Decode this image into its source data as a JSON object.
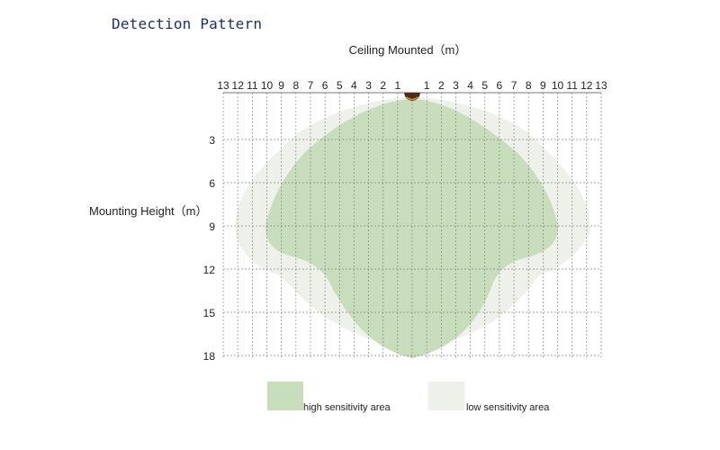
{
  "title": "Detection Pattern",
  "top_axis": {
    "label": "Ceiling Mounted（m）",
    "left_ticks": [
      "13",
      "12",
      "11",
      "10",
      "9",
      "8",
      "7",
      "6",
      "5",
      "4",
      "3",
      "2",
      "1"
    ],
    "right_ticks": [
      "1",
      "2",
      "3",
      "4",
      "5",
      "6",
      "7",
      "8",
      "9",
      "10",
      "11",
      "12",
      "13"
    ]
  },
  "side_axis": {
    "label": "Mounting Height（m）",
    "ticks": [
      "3",
      "6",
      "9",
      "12",
      "15",
      "18"
    ]
  },
  "legend": {
    "high": {
      "label": "high sensitivity area",
      "color": "#c7ddbb"
    },
    "low": {
      "label": "low sensitivity area",
      "color": "#eef1ea"
    }
  },
  "colors": {
    "sensor": "#4a2e1e",
    "sensor_accent": "#e08a3a",
    "grid": "#888888"
  }
}
